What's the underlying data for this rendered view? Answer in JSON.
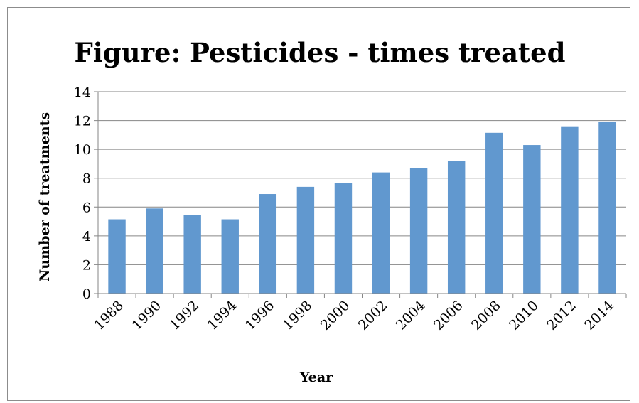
{
  "chart_data": {
    "type": "bar",
    "title": "Figure: Pesticides - times treated",
    "xlabel": "Year",
    "ylabel": "Number of treatments",
    "categories": [
      "1988",
      "1990",
      "1992",
      "1994",
      "1996",
      "1998",
      "2000",
      "2002",
      "2004",
      "2006",
      "2008",
      "2010",
      "2012",
      "2014"
    ],
    "values": [
      5.15,
      5.9,
      5.45,
      5.15,
      6.9,
      7.4,
      7.65,
      8.4,
      8.7,
      9.2,
      11.15,
      10.3,
      11.6,
      11.9
    ],
    "ylim": [
      0,
      14
    ],
    "yticks": [
      "0",
      "2",
      "4",
      "6",
      "8",
      "10",
      "12",
      "14"
    ],
    "grid": true,
    "legend": "none",
    "bar_color": "#6198cf"
  }
}
